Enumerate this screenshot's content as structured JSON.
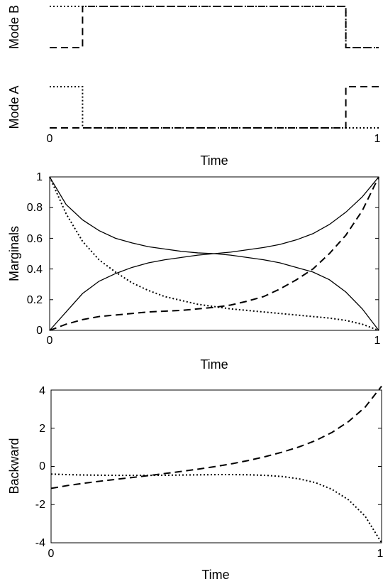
{
  "chart_data": [
    {
      "type": "line",
      "panel": "mode-b",
      "ylabel": "Mode B",
      "xlim": [
        0,
        1
      ],
      "ylim": [
        0,
        1
      ],
      "series": [
        {
          "style": "dashed",
          "x": [
            0,
            0.1,
            0.1,
            0.9,
            0.9,
            1
          ],
          "y": [
            0,
            0,
            1,
            1,
            0,
            0
          ]
        },
        {
          "style": "dotted",
          "x": [
            0,
            0.9,
            0.9,
            1
          ],
          "y": [
            1,
            1,
            0,
            0
          ]
        }
      ]
    },
    {
      "type": "line",
      "panel": "mode-a",
      "ylabel": "Mode A",
      "xlabel": "Time",
      "xlim": [
        0,
        1
      ],
      "ylim": [
        0,
        1
      ],
      "xticks": [
        "0",
        "1"
      ],
      "series": [
        {
          "style": "dotted",
          "x": [
            0,
            0.1,
            0.1,
            1
          ],
          "y": [
            1,
            1,
            0,
            0
          ]
        },
        {
          "style": "dashed",
          "x": [
            0,
            0.9,
            0.9,
            1
          ],
          "y": [
            0,
            0,
            1,
            1
          ]
        }
      ]
    },
    {
      "type": "line",
      "panel": "marginals",
      "ylabel": "Marginals",
      "xlabel": "Time",
      "xlim": [
        0,
        1
      ],
      "ylim": [
        0,
        1
      ],
      "xticks": [
        "0",
        "1"
      ],
      "yticks": [
        "0",
        "0.2",
        "0.4",
        "0.6",
        "0.8",
        "1"
      ],
      "series": [
        {
          "style": "solid",
          "x": [
            0,
            0.05,
            0.1,
            0.15,
            0.2,
            0.25,
            0.3,
            0.35,
            0.4,
            0.45,
            0.5,
            0.55,
            0.6,
            0.65,
            0.7,
            0.75,
            0.8,
            0.85,
            0.9,
            0.95,
            1
          ],
          "y": [
            1.0,
            0.82,
            0.72,
            0.65,
            0.6,
            0.57,
            0.545,
            0.53,
            0.515,
            0.505,
            0.5,
            0.49,
            0.475,
            0.46,
            0.44,
            0.41,
            0.38,
            0.33,
            0.25,
            0.14,
            0.0
          ]
        },
        {
          "style": "solid",
          "x": [
            0,
            0.05,
            0.1,
            0.15,
            0.2,
            0.25,
            0.3,
            0.35,
            0.4,
            0.45,
            0.5,
            0.55,
            0.6,
            0.65,
            0.7,
            0.75,
            0.8,
            0.85,
            0.9,
            0.95,
            1
          ],
          "y": [
            0.0,
            0.12,
            0.24,
            0.32,
            0.37,
            0.41,
            0.44,
            0.46,
            0.475,
            0.49,
            0.5,
            0.51,
            0.525,
            0.54,
            0.56,
            0.59,
            0.63,
            0.69,
            0.77,
            0.87,
            1.0
          ]
        },
        {
          "style": "dotted",
          "x": [
            0,
            0.05,
            0.1,
            0.15,
            0.2,
            0.25,
            0.3,
            0.35,
            0.4,
            0.45,
            0.5,
            0.55,
            0.6,
            0.65,
            0.7,
            0.75,
            0.8,
            0.85,
            0.9,
            0.95,
            1
          ],
          "y": [
            1.0,
            0.76,
            0.58,
            0.46,
            0.38,
            0.31,
            0.26,
            0.22,
            0.195,
            0.17,
            0.155,
            0.14,
            0.13,
            0.12,
            0.11,
            0.1,
            0.09,
            0.08,
            0.065,
            0.04,
            0.0
          ]
        },
        {
          "style": "dashed",
          "x": [
            0,
            0.05,
            0.1,
            0.15,
            0.2,
            0.25,
            0.3,
            0.35,
            0.4,
            0.45,
            0.5,
            0.55,
            0.6,
            0.65,
            0.7,
            0.75,
            0.8,
            0.85,
            0.9,
            0.95,
            1
          ],
          "y": [
            0.0,
            0.04,
            0.07,
            0.09,
            0.1,
            0.11,
            0.12,
            0.125,
            0.13,
            0.14,
            0.15,
            0.165,
            0.19,
            0.22,
            0.27,
            0.33,
            0.4,
            0.5,
            0.62,
            0.78,
            1.0
          ]
        }
      ]
    },
    {
      "type": "line",
      "panel": "backward",
      "ylabel": "Backward",
      "xlabel": "Time",
      "xlim": [
        0,
        1
      ],
      "ylim": [
        -4,
        4
      ],
      "xticks": [
        "0",
        "1"
      ],
      "yticks": [
        "-4",
        "-2",
        "0",
        "2",
        "4"
      ],
      "series": [
        {
          "style": "dashed",
          "x": [
            0,
            0.05,
            0.1,
            0.15,
            0.2,
            0.25,
            0.3,
            0.35,
            0.4,
            0.45,
            0.5,
            0.55,
            0.6,
            0.65,
            0.7,
            0.75,
            0.8,
            0.85,
            0.9,
            0.95,
            1
          ],
          "y": [
            -1.15,
            -1.0,
            -0.88,
            -0.77,
            -0.67,
            -0.57,
            -0.47,
            -0.36,
            -0.25,
            -0.13,
            0.0,
            0.15,
            0.32,
            0.52,
            0.75,
            1.02,
            1.35,
            1.78,
            2.35,
            3.1,
            4.2
          ]
        },
        {
          "style": "dotted",
          "x": [
            0,
            0.05,
            0.1,
            0.15,
            0.2,
            0.25,
            0.3,
            0.35,
            0.4,
            0.45,
            0.5,
            0.55,
            0.6,
            0.65,
            0.7,
            0.75,
            0.8,
            0.85,
            0.9,
            0.95,
            1
          ],
          "y": [
            -0.4,
            -0.43,
            -0.45,
            -0.46,
            -0.47,
            -0.47,
            -0.47,
            -0.46,
            -0.45,
            -0.44,
            -0.43,
            -0.43,
            -0.44,
            -0.47,
            -0.53,
            -0.65,
            -0.85,
            -1.2,
            -1.75,
            -2.6,
            -4.0
          ]
        }
      ]
    }
  ]
}
